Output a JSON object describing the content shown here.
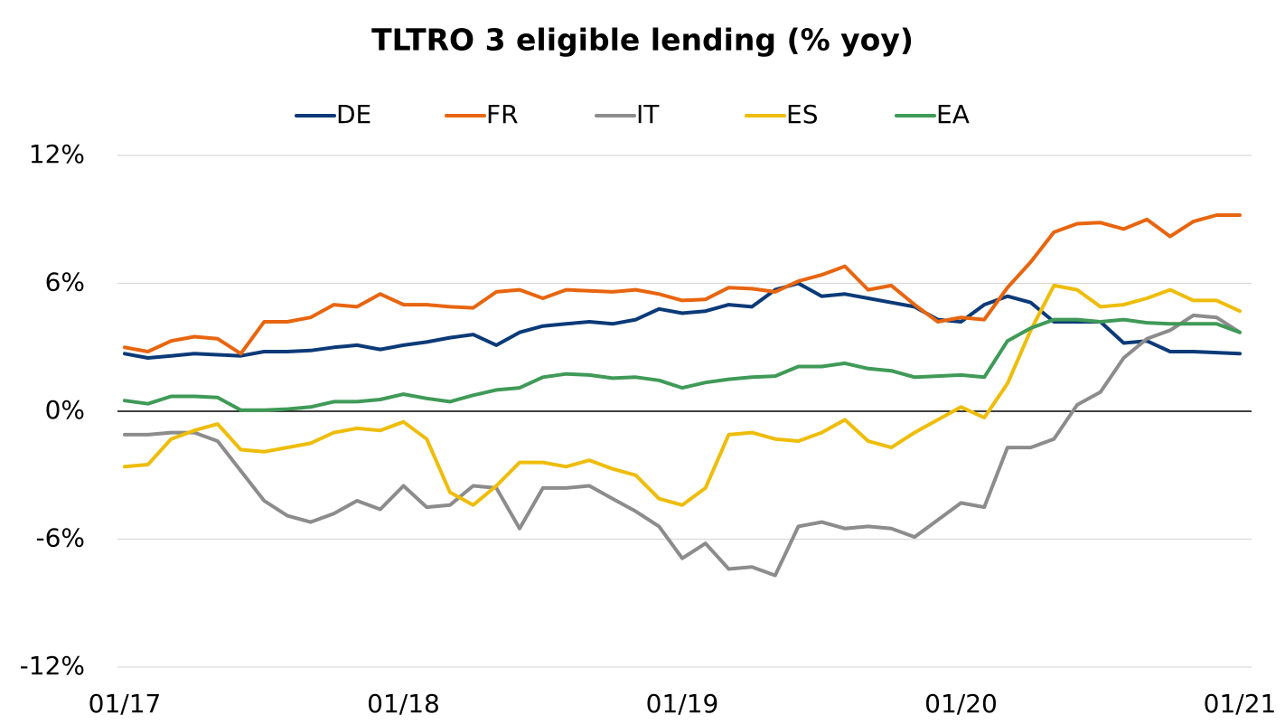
{
  "chart_data": {
    "type": "line",
    "title": "TLTRO 3 eligible lending (% yoy)",
    "categories": [
      "01/17",
      null,
      null,
      null,
      null,
      null,
      null,
      null,
      null,
      null,
      null,
      null,
      "01/18",
      null,
      null,
      null,
      null,
      null,
      null,
      null,
      null,
      null,
      null,
      null,
      "01/19",
      null,
      null,
      null,
      null,
      null,
      null,
      null,
      null,
      null,
      null,
      null,
      "01/20",
      null,
      null,
      null,
      null,
      null,
      null,
      null,
      null,
      null,
      null,
      null,
      "01/21"
    ],
    "series": [
      {
        "name": "DE",
        "color": "#0b3a78",
        "values": [
          2.7,
          2.5,
          2.6,
          2.7,
          2.65,
          2.6,
          2.8,
          2.8,
          2.85,
          3.0,
          3.1,
          2.9,
          3.1,
          3.25,
          3.45,
          3.6,
          3.1,
          3.7,
          4.0,
          4.1,
          4.2,
          4.1,
          4.3,
          4.8,
          4.6,
          4.7,
          5.0,
          4.9,
          5.7,
          6.0,
          5.4,
          5.5,
          5.3,
          5.1,
          4.9,
          4.3,
          4.2,
          5.0,
          5.4,
          5.1,
          4.2,
          4.2,
          4.2,
          3.2,
          3.3,
          2.8,
          2.8,
          2.75,
          2.7
        ]
      },
      {
        "name": "FR",
        "color": "#e8650f",
        "values": [
          3.0,
          2.8,
          3.3,
          3.5,
          3.4,
          2.7,
          4.2,
          4.2,
          4.4,
          5.0,
          4.9,
          5.5,
          5.0,
          5.0,
          4.9,
          4.85,
          5.6,
          5.7,
          5.3,
          5.7,
          5.65,
          5.6,
          5.7,
          5.5,
          5.2,
          5.25,
          5.8,
          5.75,
          5.6,
          6.1,
          6.4,
          6.8,
          5.7,
          5.9,
          5.0,
          4.2,
          4.4,
          4.3,
          5.8,
          7.0,
          8.4,
          8.8,
          8.85,
          8.55,
          9.0,
          8.2,
          8.9,
          9.2,
          9.2
        ]
      },
      {
        "name": "IT",
        "color": "#8c8c8c",
        "values": [
          -1.1,
          -1.1,
          -1.0,
          -1.0,
          -1.4,
          -2.8,
          -4.2,
          -4.9,
          -5.2,
          -4.8,
          -4.2,
          -4.6,
          -3.5,
          -4.5,
          -4.4,
          -3.5,
          -3.6,
          -5.5,
          -3.6,
          -3.6,
          -3.5,
          -4.1,
          -4.7,
          -5.4,
          -6.9,
          -6.2,
          -7.4,
          -7.3,
          -7.7,
          -5.4,
          -5.2,
          -5.5,
          -5.4,
          -5.5,
          -5.9,
          -5.1,
          -4.3,
          -4.5,
          -1.7,
          -1.7,
          -1.3,
          0.3,
          0.9,
          2.5,
          3.4,
          3.8,
          4.5,
          4.4,
          3.7
        ]
      },
      {
        "name": "ES",
        "color": "#eebd0a",
        "values": [
          -2.6,
          -2.5,
          -1.3,
          -0.9,
          -0.6,
          -1.8,
          -1.9,
          -1.7,
          -1.5,
          -1.0,
          -0.8,
          -0.9,
          -0.5,
          -1.3,
          -3.8,
          -4.4,
          -3.5,
          -2.4,
          -2.4,
          -2.6,
          -2.3,
          -2.7,
          -3.0,
          -4.1,
          -4.4,
          -3.6,
          -1.1,
          -1.0,
          -1.3,
          -1.4,
          -1.0,
          -0.4,
          -1.4,
          -1.7,
          -1.0,
          -0.4,
          0.2,
          -0.3,
          1.3,
          3.8,
          5.9,
          5.7,
          4.9,
          5.0,
          5.3,
          5.7,
          5.2,
          5.2,
          4.7
        ]
      },
      {
        "name": "EA",
        "color": "#3f9a57",
        "values": [
          0.5,
          0.35,
          0.7,
          0.7,
          0.65,
          0.05,
          0.05,
          0.1,
          0.2,
          0.45,
          0.45,
          0.55,
          0.8,
          0.6,
          0.45,
          0.75,
          1.0,
          1.1,
          1.6,
          1.75,
          1.7,
          1.55,
          1.6,
          1.45,
          1.1,
          1.35,
          1.5,
          1.6,
          1.65,
          2.1,
          2.1,
          2.25,
          2.0,
          1.9,
          1.6,
          1.65,
          1.7,
          1.6,
          3.3,
          3.9,
          4.3,
          4.3,
          4.2,
          4.3,
          4.15,
          4.1,
          4.1,
          4.1,
          3.7
        ]
      }
    ],
    "ylim": [
      -12,
      12
    ],
    "yticks": [
      {
        "value": -12,
        "label": "-12%"
      },
      {
        "value": -6,
        "label": "-6%"
      },
      {
        "value": 0,
        "label": "0%"
      },
      {
        "value": 6,
        "label": "6%"
      },
      {
        "value": 12,
        "label": "12%"
      }
    ],
    "grid": true,
    "legend": "top"
  }
}
